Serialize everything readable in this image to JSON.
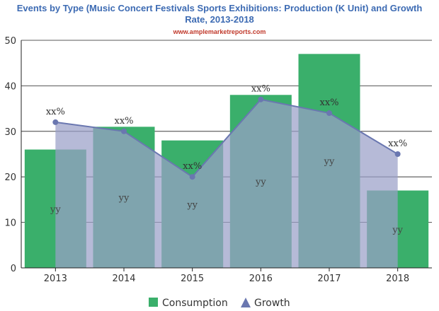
{
  "chart_data": {
    "type": "bar",
    "title_line1": "Events  by Type (Music Concert Festivals Sports Exhibitions: Production (K Unit) and Growth",
    "title_line2": "Rate, 2013-2018",
    "source": "www.amplemarketreports.com",
    "categories": [
      "2013",
      "2014",
      "2015",
      "2016",
      "2017",
      "2018"
    ],
    "series": [
      {
        "name": "Consumption",
        "type": "bar",
        "values": [
          26,
          31,
          28,
          38,
          47,
          17
        ],
        "color": "#3aaf6b",
        "label": "yy"
      },
      {
        "name": "Growth",
        "type": "area",
        "values": [
          32,
          30,
          20,
          37,
          34,
          25
        ],
        "color": "#6a77b0",
        "fill": "#9aa0c8",
        "label": "xx%"
      }
    ],
    "ylim": [
      0,
      50
    ],
    "yticks": [
      0,
      10,
      20,
      30,
      40,
      50
    ],
    "grid": true,
    "legend_position": "bottom"
  }
}
